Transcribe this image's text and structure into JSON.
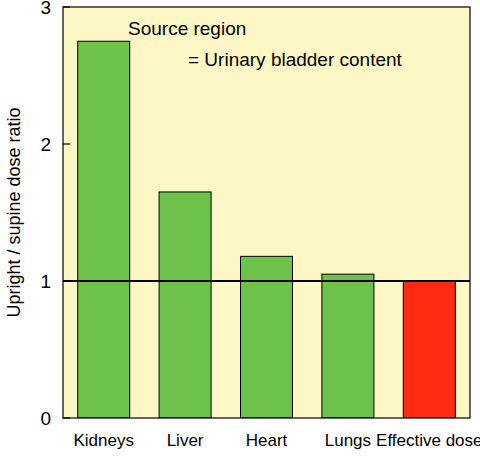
{
  "chart_data": {
    "type": "bar",
    "annotations": [
      "Source region",
      "= Urinary bladder content"
    ],
    "y_label": "Upright / supine dose ratio",
    "categories": [
      "Kidneys",
      "Liver",
      "Heart",
      "Lungs",
      "Effective dose"
    ],
    "values": [
      2.75,
      1.65,
      1.18,
      1.05,
      1.0
    ],
    "colors": [
      "#6cc24a",
      "#6cc24a",
      "#6cc24a",
      "#6cc24a",
      "#ff2b12"
    ],
    "ylim": [
      0,
      3
    ],
    "yticks": [
      0,
      1,
      2,
      3
    ],
    "reference_line": 1,
    "grid": false
  }
}
